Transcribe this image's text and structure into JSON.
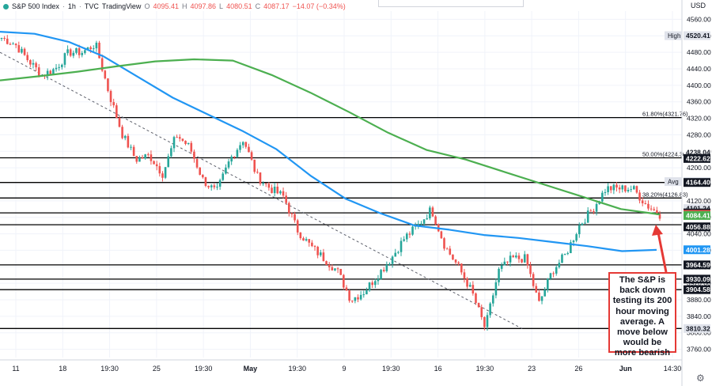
{
  "legend": {
    "symbol": "S&P 500 Index",
    "interval": "1h",
    "source": "TVC",
    "platform": "TradingView",
    "o_label": "O",
    "o_value": "4095.41",
    "h_label": "H",
    "h_value": "4097.86",
    "l_label": "L",
    "l_value": "4080.51",
    "c_label": "C",
    "c_value": "4087.17",
    "change": "−14.07 (−0.34%)"
  },
  "currency": "USD",
  "annotation_text": "The S&P is back down testing its 200 hour moving average. A move below would be more bearish",
  "colors": {
    "up": "#26a69a",
    "down": "#ef5350",
    "ma100": "#2196f3",
    "ma200": "#4caf50",
    "level": "#000000",
    "arrow": "#e53935"
  },
  "chart_data": {
    "type": "line",
    "title": "S&P 500 Index",
    "ylim": [
      3740,
      4580
    ],
    "y_ticks": [
      3760,
      3800,
      3840,
      3880,
      3920,
      3960,
      4000,
      4040,
      4080,
      4120,
      4160,
      4200,
      4240,
      4280,
      4320,
      4360,
      4400,
      4440,
      4480,
      4520,
      4560
    ],
    "x_ticks": [
      "11",
      "18",
      "19:30",
      "25",
      "19:30",
      "May",
      "19:30",
      "9",
      "19:30",
      "16",
      "19:30",
      "23",
      "26",
      "Jun",
      "14:30"
    ],
    "series": [
      {
        "values": [
          4515,
          4500,
          4460,
          4425,
          4440,
          4480,
          4480,
          4500,
          4380,
          4280,
          4220,
          4230,
          4185,
          4280,
          4250,
          4170,
          4140,
          4220,
          4270,
          4180,
          4150,
          4130,
          4050,
          4010,
          3980,
          3950,
          3880,
          3900,
          3940,
          3980,
          4030,
          4060,
          4100,
          4010,
          3960,
          3900,
          3810,
          3950,
          3980,
          3980,
          3870,
          3950,
          3990,
          4060,
          4100,
          4150,
          4150,
          4150,
          4110,
          4087
        ]
      },
      {
        "values": [
          4530,
          4525,
          4505,
          4470,
          4420,
          4370,
          4330,
          4290,
          4245,
          4180,
          4125,
          4090,
          4060,
          4050,
          4037,
          4030,
          4020,
          4010,
          3998,
          4001
        ]
      },
      {
        "values": [
          4412,
          4422,
          4433,
          4446,
          4458,
          4463,
          4460,
          4425,
          4382,
          4335,
          4285,
          4243,
          4220,
          4190,
          4160,
          4130,
          4100,
          4087
        ]
      }
    ],
    "levels": [
      {
        "value": 4321.76,
        "label": "61.80%(4321.76)"
      },
      {
        "value": 4224.3,
        "label": "50.00%(4224.30)"
      },
      {
        "value": 4164.4
      },
      {
        "value": 4126.83,
        "label": "38.20%(4126.83)"
      },
      {
        "value": 4090.69
      },
      {
        "value": 4062.0
      },
      {
        "value": 3964.59
      },
      {
        "value": 3930.09
      },
      {
        "value": 3904.58
      },
      {
        "value": 3810.32
      }
    ],
    "price_tags": [
      {
        "label": "High",
        "value": "4520.41",
        "y": 4520.41,
        "bg": "#e0e3eb",
        "fg": "#131722"
      },
      {
        "value": "4238.04",
        "y": 4238.04,
        "bg": "#ffffff",
        "fg": "#131722"
      },
      {
        "value": "4222.62",
        "y": 4222.62,
        "bg": "#131722",
        "fg": "#ffffff"
      },
      {
        "label": "Avg",
        "value": "4166.57",
        "y": 4166.57,
        "bg": "#e0e3eb",
        "fg": "#131722"
      },
      {
        "value": "4164.40",
        "y": 4164.4,
        "bg": "#131722",
        "fg": "#ffffff"
      },
      {
        "value": "4101.24",
        "y": 4101.24,
        "bg": "#e0e3eb",
        "fg": "#131722"
      },
      {
        "value": "4090.69",
        "y": 4090.69,
        "bg": "#131722",
        "fg": "#ffffff"
      },
      {
        "value": "4087.17",
        "y": 4087.17,
        "bg": "#ef5350",
        "fg": "#ffffff"
      },
      {
        "value": "4084.41",
        "y": 4084.41,
        "bg": "#4caf50",
        "fg": "#ffffff"
      },
      {
        "value": "4056.88",
        "y": 4056.88,
        "bg": "#131722",
        "fg": "#ffffff"
      },
      {
        "value": "4001.28",
        "y": 4001.28,
        "bg": "#2196f3",
        "fg": "#ffffff"
      },
      {
        "value": "3964.59",
        "y": 3964.59,
        "bg": "#131722",
        "fg": "#ffffff"
      },
      {
        "value": "3930.09",
        "y": 3930.09,
        "bg": "#131722",
        "fg": "#ffffff"
      },
      {
        "value": "3904.58",
        "y": 3904.58,
        "bg": "#131722",
        "fg": "#ffffff"
      },
      {
        "value": "3810.32",
        "y": 3810.32,
        "bg": "#e0e3eb",
        "fg": "#131722"
      }
    ]
  }
}
